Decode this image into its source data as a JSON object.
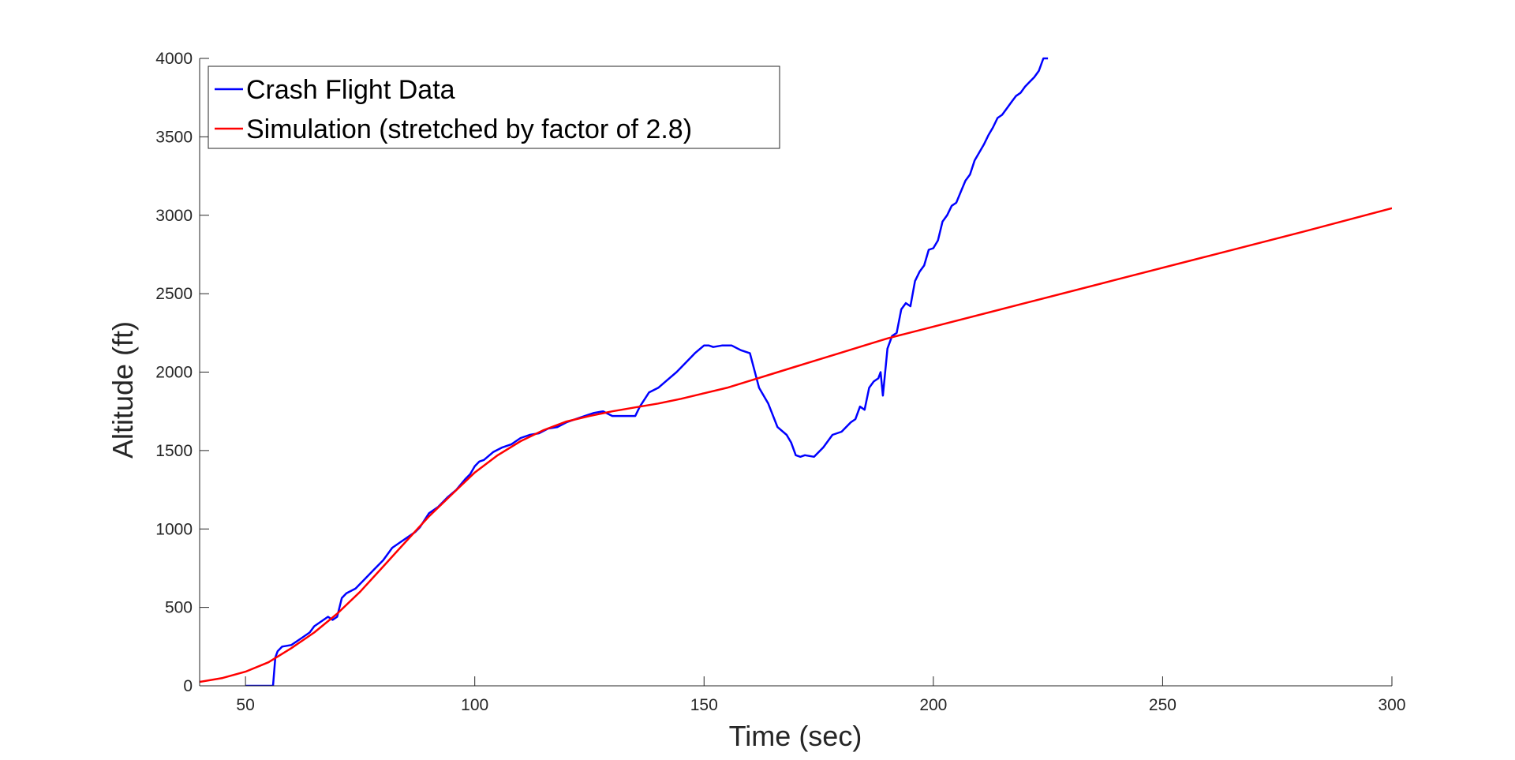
{
  "chart_data": {
    "type": "line",
    "title": "",
    "xlabel": "Time (sec)",
    "ylabel": "Altitude (ft)",
    "xlim": [
      40,
      300
    ],
    "ylim": [
      0,
      4000
    ],
    "xticks": [
      50,
      100,
      150,
      200,
      250,
      300
    ],
    "yticks": [
      0,
      500,
      1000,
      1500,
      2000,
      2500,
      3000,
      3500,
      4000
    ],
    "grid": false,
    "legend_position": "top-left",
    "series": [
      {
        "name": "Crash Flight Data",
        "color": "#0000ff",
        "x": [
          50,
          52,
          54,
          55.5,
          56,
          56.5,
          57,
          58,
          60,
          62,
          64,
          65,
          66,
          68,
          69,
          70,
          71,
          72,
          74,
          76,
          78,
          80,
          82,
          84,
          86,
          87,
          88,
          90,
          92,
          94,
          96,
          98,
          99,
          100,
          101,
          102,
          104,
          106,
          108,
          110,
          112,
          114,
          116,
          118,
          120,
          122,
          124,
          126,
          128,
          130,
          132,
          134,
          135,
          136,
          138,
          140,
          142,
          144,
          146,
          148,
          150,
          151,
          152,
          154,
          156,
          158,
          160,
          162,
          164,
          166,
          168,
          169,
          170,
          171,
          172,
          174,
          176,
          178,
          180,
          182,
          183,
          184,
          185,
          186,
          187,
          188,
          188.5,
          189,
          190,
          191,
          192,
          193,
          194,
          195,
          196,
          197,
          198,
          199,
          200,
          201,
          202,
          203,
          204,
          205,
          206,
          207,
          208,
          209,
          210,
          211,
          212,
          213,
          214,
          215,
          216,
          217,
          218,
          219,
          220,
          221,
          222,
          223,
          224,
          225
        ],
        "y": [
          0,
          0,
          0,
          0,
          0,
          180,
          220,
          250,
          260,
          300,
          340,
          380,
          400,
          440,
          420,
          440,
          560,
          590,
          620,
          680,
          740,
          800,
          880,
          920,
          960,
          980,
          1010,
          1100,
          1140,
          1200,
          1250,
          1320,
          1350,
          1400,
          1430,
          1440,
          1490,
          1520,
          1540,
          1580,
          1600,
          1610,
          1640,
          1650,
          1680,
          1700,
          1720,
          1740,
          1750,
          1720,
          1720,
          1720,
          1720,
          1780,
          1870,
          1900,
          1950,
          2000,
          2060,
          2120,
          2170,
          2170,
          2160,
          2170,
          2170,
          2140,
          2120,
          1900,
          1800,
          1650,
          1600,
          1550,
          1470,
          1460,
          1470,
          1460,
          1520,
          1600,
          1620,
          1680,
          1700,
          1780,
          1760,
          1900,
          1940,
          1960,
          2000,
          1850,
          2150,
          2230,
          2250,
          2400,
          2440,
          2420,
          2580,
          2640,
          2680,
          2780,
          2790,
          2840,
          2960,
          3000,
          3060,
          3080,
          3150,
          3220,
          3260,
          3350,
          3400,
          3450,
          3510,
          3560,
          3620,
          3640,
          3680,
          3720,
          3760,
          3780,
          3820,
          3850,
          3880,
          3920,
          4000,
          4000
        ]
      },
      {
        "name": "Simulation (stretched by factor of 2.8)",
        "color": "#ff0000",
        "x": [
          40,
          45,
          50,
          55,
          60,
          65,
          70,
          75,
          80,
          85,
          90,
          95,
          100,
          105,
          110,
          115,
          120,
          125,
          130,
          135,
          140,
          145,
          150,
          155,
          160,
          165,
          170,
          175,
          180,
          185,
          190,
          200,
          220,
          240,
          260,
          280,
          300
        ],
        "y": [
          25,
          50,
          90,
          150,
          240,
          340,
          460,
          600,
          760,
          920,
          1080,
          1220,
          1360,
          1470,
          1560,
          1630,
          1685,
          1720,
          1750,
          1775,
          1800,
          1830,
          1865,
          1900,
          1945,
          1990,
          2035,
          2080,
          2125,
          2170,
          2215,
          2290,
          2440,
          2590,
          2740,
          2890,
          3045
        ]
      }
    ]
  }
}
